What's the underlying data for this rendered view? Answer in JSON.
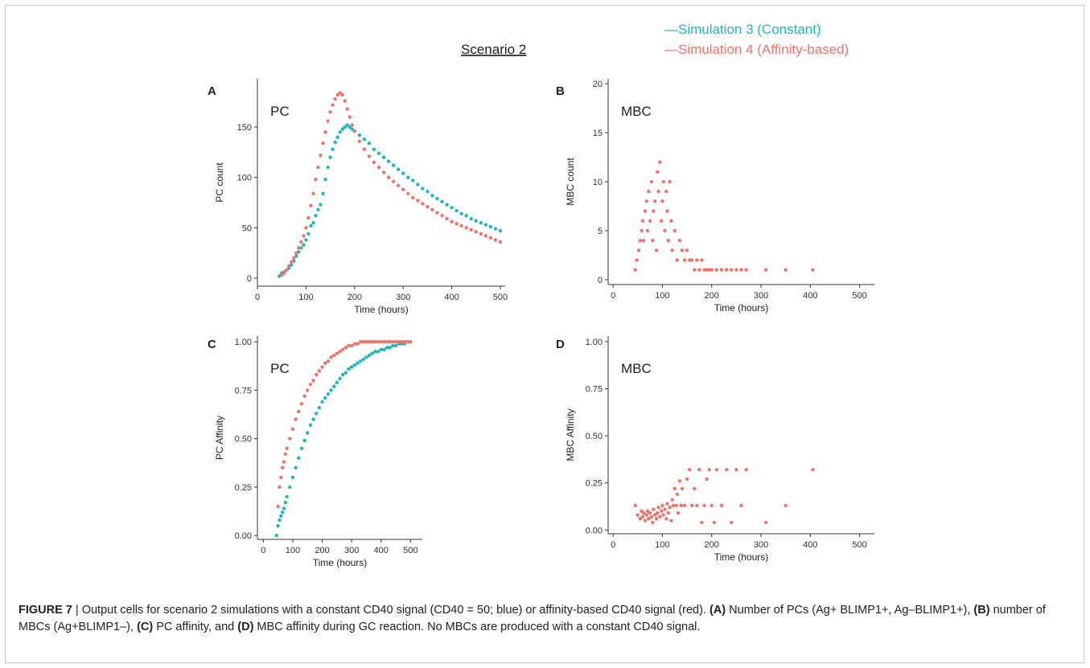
{
  "figure": {
    "scenario_title": "Scenario 2",
    "legend": [
      {
        "label": "—Simulation 3 (Constant)",
        "color": "#1cb8bd"
      },
      {
        "label": "—Simulation 4 (Affinity-based)",
        "color": "#f0736a"
      }
    ],
    "colors": {
      "constant": "#1cb8bd",
      "affinity": "#f0736a"
    }
  },
  "caption": {
    "label": "FIGURE 7",
    "separator": " | ",
    "text": "Output cells for scenario 2 simulations with a constant CD40 signal (CD40 = 50; blue) or affinity-based CD40 signal (red). ",
    "a": "(A)",
    "a_text": " Number of PCs (Ag+ BLIMP1+, Ag–BLIMP1+), ",
    "b": "(B)",
    "b_text": " number of MBCs (Ag+BLIMP1–), ",
    "c": "(C)",
    "c_text": " PC affinity, and ",
    "d": "(D)",
    "d_text": " MBC affinity during GC reaction. No MBCs are produced with a constant CD40 signal."
  },
  "chart_data": [
    {
      "panel": "A",
      "type": "scatter",
      "inner_label": "PC",
      "xlabel": "Time (hours)",
      "ylabel": "PC count",
      "xlim": [
        0,
        510
      ],
      "ylim": [
        -8,
        198
      ],
      "xticks": [
        0,
        100,
        200,
        300,
        400,
        500
      ],
      "yticks": [
        0,
        50,
        100,
        150
      ],
      "series": [
        {
          "key": "constant",
          "x": [
            45,
            50,
            55,
            60,
            65,
            70,
            75,
            80,
            85,
            90,
            95,
            100,
            105,
            110,
            115,
            120,
            125,
            130,
            135,
            140,
            145,
            150,
            155,
            160,
            165,
            170,
            175,
            180,
            185,
            190,
            195,
            200,
            210,
            220,
            230,
            240,
            250,
            260,
            270,
            280,
            290,
            300,
            310,
            320,
            330,
            340,
            350,
            360,
            370,
            380,
            390,
            400,
            410,
            420,
            430,
            440,
            450,
            460,
            470,
            480,
            490,
            500
          ],
          "y": [
            2,
            5,
            6,
            8,
            10,
            13,
            17,
            22,
            26,
            30,
            33,
            38,
            44,
            52,
            55,
            62,
            68,
            73,
            84,
            98,
            110,
            120,
            128,
            135,
            140,
            145,
            148,
            150,
            152,
            150,
            148,
            146,
            142,
            138,
            134,
            128,
            124,
            120,
            116,
            112,
            108,
            104,
            100,
            97,
            93,
            89,
            86,
            82,
            79,
            76,
            73,
            70,
            67,
            64,
            62,
            59,
            57,
            55,
            53,
            51,
            49,
            47
          ]
        },
        {
          "key": "affinity",
          "x": [
            50,
            55,
            60,
            65,
            70,
            75,
            80,
            85,
            90,
            95,
            100,
            105,
            110,
            115,
            120,
            125,
            130,
            135,
            140,
            145,
            150,
            155,
            160,
            165,
            170,
            175,
            180,
            185,
            190,
            195,
            200,
            210,
            220,
            230,
            240,
            250,
            260,
            270,
            280,
            290,
            300,
            310,
            320,
            330,
            340,
            350,
            360,
            370,
            380,
            390,
            400,
            410,
            420,
            430,
            440,
            450,
            460,
            470,
            480,
            490,
            500
          ],
          "y": [
            3,
            5,
            8,
            12,
            16,
            20,
            25,
            30,
            36,
            42,
            50,
            60,
            72,
            84,
            98,
            110,
            122,
            134,
            145,
            156,
            165,
            172,
            178,
            182,
            184,
            182,
            176,
            168,
            160,
            152,
            146,
            136,
            128,
            121,
            115,
            110,
            105,
            100,
            96,
            92,
            88,
            84,
            80,
            77,
            74,
            71,
            68,
            65,
            62,
            59,
            56,
            54,
            52,
            50,
            48,
            46,
            44,
            42,
            40,
            38,
            36
          ]
        }
      ]
    },
    {
      "panel": "B",
      "type": "scatter",
      "inner_label": "MBC",
      "xlabel": "Time (hours)",
      "ylabel": "MBC count",
      "xlim": [
        -10,
        530
      ],
      "ylim": [
        -0.5,
        20.5
      ],
      "xticks": [
        0,
        100,
        200,
        300,
        400,
        500
      ],
      "yticks": [
        0,
        5,
        10,
        15,
        20
      ],
      "series": [
        {
          "key": "affinity",
          "x": [
            45,
            48,
            52,
            55,
            58,
            60,
            62,
            65,
            68,
            70,
            72,
            75,
            78,
            80,
            82,
            85,
            88,
            90,
            92,
            95,
            98,
            100,
            102,
            105,
            108,
            110,
            112,
            115,
            118,
            120,
            125,
            130,
            135,
            140,
            145,
            150,
            155,
            160,
            165,
            170,
            175,
            180,
            185,
            190,
            195,
            200,
            210,
            220,
            230,
            240,
            250,
            260,
            270,
            310,
            350,
            405
          ],
          "y": [
            1,
            2,
            3,
            4,
            5,
            6,
            4,
            7,
            8,
            5,
            9,
            6,
            10,
            4,
            7,
            8,
            3,
            11,
            9,
            12,
            6,
            8,
            10,
            5,
            9,
            7,
            4,
            10,
            6,
            3,
            5,
            2,
            4,
            3,
            2,
            3,
            2,
            2,
            1,
            2,
            1,
            2,
            1,
            1,
            1,
            1,
            1,
            1,
            1,
            1,
            1,
            1,
            1,
            1,
            1,
            1
          ]
        }
      ]
    },
    {
      "panel": "C",
      "type": "scatter",
      "inner_label": "PC",
      "xlabel": "Time (hours)",
      "ylabel": "PC Affinity",
      "xlim": [
        -20,
        540
      ],
      "ylim": [
        -0.02,
        1.03
      ],
      "xticks": [
        0,
        100,
        200,
        300,
        400,
        500
      ],
      "yticks": [
        0.0,
        0.25,
        0.5,
        0.75,
        1.0
      ],
      "series": [
        {
          "key": "constant",
          "x": [
            45,
            50,
            55,
            60,
            65,
            70,
            75,
            80,
            90,
            100,
            110,
            120,
            130,
            140,
            150,
            160,
            170,
            180,
            190,
            200,
            210,
            220,
            230,
            240,
            250,
            260,
            270,
            280,
            290,
            300,
            310,
            320,
            330,
            340,
            350,
            360,
            370,
            380,
            390,
            400,
            410,
            420,
            430,
            440,
            450,
            460,
            470,
            480,
            490,
            500
          ],
          "y": [
            0.0,
            0.05,
            0.08,
            0.1,
            0.12,
            0.14,
            0.17,
            0.2,
            0.25,
            0.3,
            0.35,
            0.4,
            0.45,
            0.49,
            0.53,
            0.57,
            0.6,
            0.63,
            0.66,
            0.69,
            0.71,
            0.73,
            0.75,
            0.77,
            0.79,
            0.81,
            0.83,
            0.84,
            0.86,
            0.87,
            0.88,
            0.89,
            0.9,
            0.91,
            0.92,
            0.93,
            0.94,
            0.95,
            0.95,
            0.96,
            0.96,
            0.97,
            0.97,
            0.98,
            0.98,
            0.99,
            0.99,
            0.99,
            1.0,
            1.0
          ]
        },
        {
          "key": "affinity",
          "x": [
            50,
            55,
            60,
            65,
            70,
            75,
            80,
            90,
            100,
            110,
            120,
            130,
            140,
            150,
            160,
            170,
            180,
            190,
            200,
            210,
            220,
            230,
            240,
            250,
            260,
            270,
            280,
            290,
            300,
            310,
            320,
            330,
            340,
            350,
            360,
            370,
            380,
            390,
            400,
            410,
            420,
            430,
            440,
            450,
            460,
            470,
            480,
            490,
            500
          ],
          "y": [
            0.15,
            0.25,
            0.3,
            0.35,
            0.38,
            0.42,
            0.45,
            0.5,
            0.55,
            0.6,
            0.64,
            0.68,
            0.72,
            0.75,
            0.78,
            0.8,
            0.83,
            0.85,
            0.87,
            0.89,
            0.9,
            0.92,
            0.93,
            0.94,
            0.95,
            0.96,
            0.97,
            0.98,
            0.98,
            0.99,
            0.99,
            1.0,
            1.0,
            1.0,
            1.0,
            1.0,
            1.0,
            1.0,
            1.0,
            1.0,
            1.0,
            1.0,
            1.0,
            1.0,
            1.0,
            1.0,
            1.0,
            1.0,
            1.0
          ]
        }
      ]
    },
    {
      "panel": "D",
      "type": "scatter",
      "inner_label": "MBC",
      "xlabel": "Time (hours)",
      "ylabel": "MBC Affinity",
      "xlim": [
        -10,
        530
      ],
      "ylim": [
        -0.02,
        1.03
      ],
      "xticks": [
        0,
        100,
        200,
        300,
        400,
        500
      ],
      "yticks": [
        0.0,
        0.25,
        0.5,
        0.75,
        1.0
      ],
      "series": [
        {
          "key": "affinity",
          "x": [
            45,
            50,
            55,
            58,
            60,
            62,
            65,
            68,
            70,
            72,
            75,
            78,
            80,
            82,
            85,
            88,
            90,
            92,
            95,
            98,
            100,
            102,
            105,
            108,
            110,
            112,
            115,
            118,
            120,
            122,
            125,
            128,
            130,
            132,
            135,
            138,
            140,
            145,
            150,
            155,
            160,
            165,
            170,
            175,
            180,
            185,
            190,
            195,
            200,
            205,
            210,
            220,
            230,
            240,
            250,
            260,
            270,
            310,
            350,
            405
          ],
          "y": [
            0.13,
            0.08,
            0.06,
            0.1,
            0.07,
            0.09,
            0.05,
            0.08,
            0.1,
            0.06,
            0.09,
            0.07,
            0.04,
            0.11,
            0.08,
            0.06,
            0.09,
            0.12,
            0.07,
            0.1,
            0.13,
            0.08,
            0.11,
            0.06,
            0.14,
            0.09,
            0.12,
            0.05,
            0.16,
            0.13,
            0.22,
            0.13,
            0.19,
            0.09,
            0.26,
            0.13,
            0.22,
            0.13,
            0.27,
            0.32,
            0.13,
            0.22,
            0.13,
            0.32,
            0.04,
            0.13,
            0.27,
            0.32,
            0.13,
            0.04,
            0.32,
            0.13,
            0.32,
            0.04,
            0.32,
            0.13,
            0.32,
            0.04,
            0.13,
            0.32
          ]
        }
      ]
    }
  ]
}
